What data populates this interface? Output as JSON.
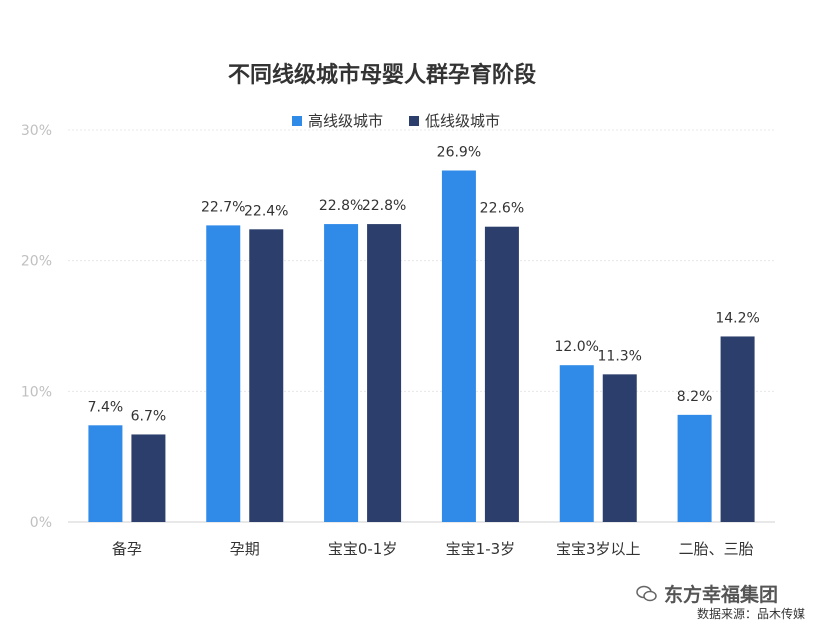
{
  "chart_data": {
    "type": "bar",
    "title": "不同线级城市母婴人群孕育阶段",
    "categories": [
      "备孕",
      "孕期",
      "宝宝0-1岁",
      "宝宝1-3岁",
      "宝宝3岁以上",
      "二胎、三胎"
    ],
    "series": [
      {
        "name": "高线级城市",
        "values": [
          7.4,
          22.7,
          22.8,
          26.9,
          12.0,
          8.2
        ],
        "color": "#2f8ae8"
      },
      {
        "name": "低线级城市",
        "values": [
          6.7,
          22.4,
          22.8,
          22.6,
          11.3,
          14.2
        ],
        "color": "#2c3e6b"
      }
    ],
    "ylim": [
      0,
      30
    ],
    "yticks": [
      "0%",
      "10%",
      "20%",
      "30%"
    ],
    "value_suffix": "%",
    "grid": true,
    "legend": "top"
  },
  "watermark": {
    "text": "东方幸福集团",
    "icon": "wechat-icon"
  },
  "source": "数据来源：品木传媒"
}
